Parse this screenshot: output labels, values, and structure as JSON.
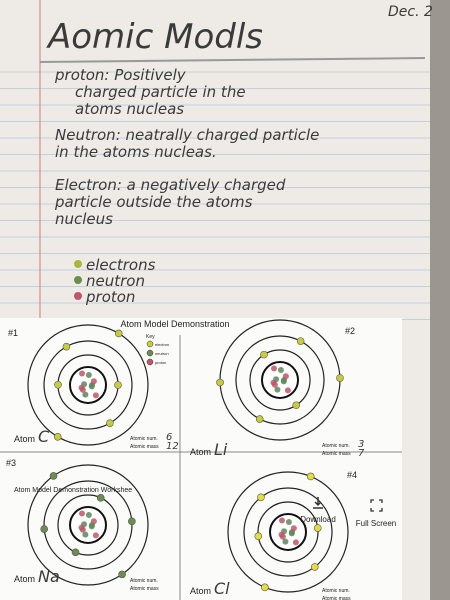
{
  "header": {
    "title": "Aomic Modls",
    "date": "Dec. 2"
  },
  "notes": [
    [
      "proton: Positively",
      "charged particle in the",
      "atoms nucleas"
    ],
    [
      "Neutron: neatrally charged particle",
      "in the atoms nucleas."
    ],
    [
      "Electron: a negatively charged",
      "particle outside the atoms",
      "nucleus"
    ]
  ],
  "legend": [
    "electrons",
    "neutron",
    "proton"
  ],
  "worksheet": {
    "title": "Atom Model Demonstration",
    "key": {
      "title": "Key",
      "items": [
        "electron",
        "neutron",
        "proton"
      ]
    },
    "panels": [
      {
        "number": "#1",
        "atom_label": "Atom",
        "atom": "C",
        "num_label": "Atomic num.",
        "mass_label": "Atomic mass",
        "num": "6",
        "mass": "12"
      },
      {
        "number": "#2",
        "atom_label": "Atom",
        "atom": "Li",
        "num_label": "Atomic num.",
        "mass_label": "Atomic mass",
        "num": "3",
        "mass": "7"
      },
      {
        "number": "#3",
        "atom_label": "Atom",
        "atom": "Na",
        "num_label": "Atomic num.",
        "mass_label": "Atomic mass"
      },
      {
        "number": "#4",
        "atom_label": "Atom",
        "atom": "Cl",
        "num_label": "Atomic num.",
        "mass_label": "Atomic mass"
      }
    ]
  },
  "overlay": {
    "title": "Atom Model Demonstration Workshee",
    "download": "Download",
    "fullscreen": "Full Screen"
  }
}
